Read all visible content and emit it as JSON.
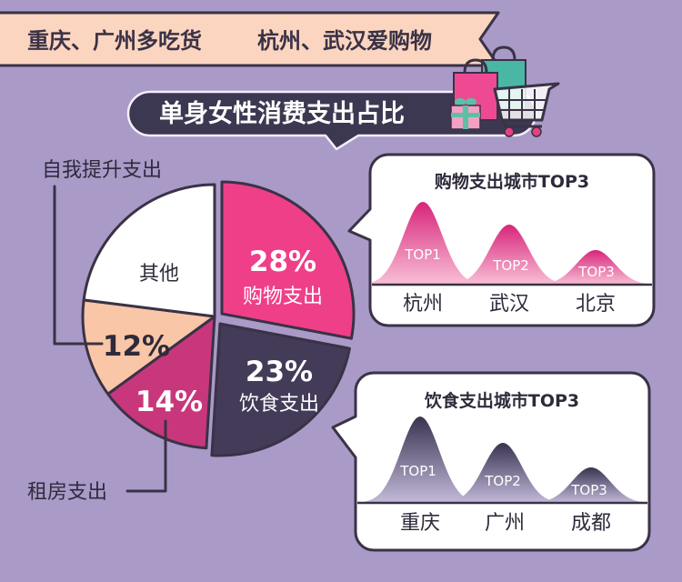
{
  "colors": {
    "background": "#a99ac8",
    "banner": "#fcd5c0",
    "ink": "#3a3246",
    "pill": "#3d3852"
  },
  "banner": {
    "left_text": "重庆、广州多吃货",
    "right_text": "杭州、武汉爱购物"
  },
  "icons": [
    "shopping-bag-icon",
    "gift-icon",
    "shopping-cart-icon"
  ],
  "chart_data": [
    {
      "type": "pie",
      "title": "单身女性消费支出占比",
      "slices": [
        {
          "label": "购物支出",
          "value": 28,
          "value_label": "28%",
          "color": "#ef3f89"
        },
        {
          "label": "饮食支出",
          "value": 23,
          "value_label": "23%",
          "color": "#433b58"
        },
        {
          "label": "租房支出",
          "value": 14,
          "value_label": "14%",
          "color": "#c8377c"
        },
        {
          "label": "自我提升支出",
          "value": 12,
          "value_label": "12%",
          "color": "#f9c6a7"
        },
        {
          "label": "其他",
          "value": 23,
          "color": "#ffffff"
        }
      ]
    },
    {
      "type": "area",
      "title": "购物支出城市TOP3",
      "categories": [
        "杭州",
        "武汉",
        "北京"
      ],
      "rank_labels": [
        "TOP1",
        "TOP2",
        "TOP3"
      ],
      "gradient": {
        "top": "#d8257a",
        "bottom": "#f8c0d7"
      }
    },
    {
      "type": "area",
      "title": "饮食支出城市TOP3",
      "categories": [
        "重庆",
        "广州",
        "成都"
      ],
      "rank_labels": [
        "TOP1",
        "TOP2",
        "TOP3"
      ],
      "gradient": {
        "top": "#393350",
        "bottom": "#c3bad9"
      }
    }
  ]
}
